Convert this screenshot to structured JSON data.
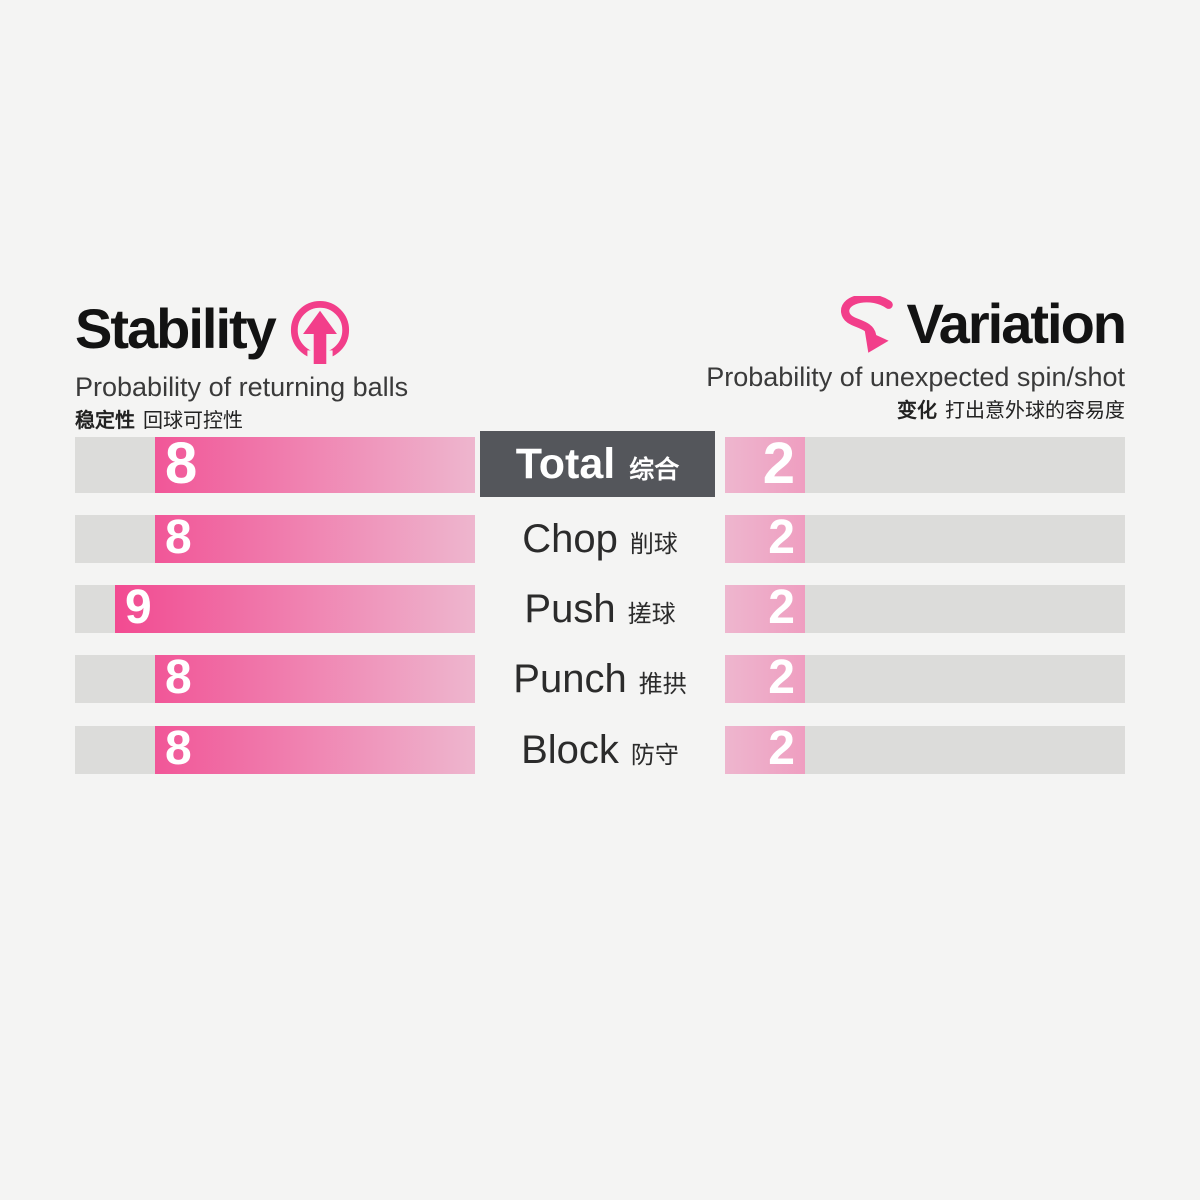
{
  "left_header": {
    "title": "Stability",
    "subtitle": "Probability of returning balls",
    "subtitle_zh_bold": "稳定性",
    "subtitle_zh": "回球可控性",
    "icon": "arrow-up-circle-icon"
  },
  "right_header": {
    "title": "Variation",
    "subtitle": "Probability of unexpected spin/shot",
    "subtitle_zh_bold": "变化",
    "subtitle_zh": "打出意外球的容易度",
    "icon": "spin-swoosh-icon"
  },
  "colors": {
    "background": "#f4f4f3",
    "track_gray": "#dcdcda",
    "pink_strong": "#f23e8a",
    "pink_pale": "#eeb6ce",
    "badge_dark": "#54565b",
    "bar_value_text": "#ffffff",
    "title_text": "#131313"
  },
  "chart_data": {
    "type": "bar",
    "orientation": "horizontal-mirrored",
    "categories": [
      "Total",
      "Chop",
      "Push",
      "Punch",
      "Block"
    ],
    "categories_zh": [
      "综合",
      "削球",
      "搓球",
      "推拱",
      "防守"
    ],
    "series": [
      {
        "name": "Stability",
        "side": "left",
        "values": [
          8,
          8,
          9,
          8,
          8
        ]
      },
      {
        "name": "Variation",
        "side": "right",
        "values": [
          2,
          2,
          2,
          2,
          2
        ]
      }
    ],
    "value_range": [
      0,
      10
    ],
    "notes": "Left bars grow from center toward left; right bars grow from center toward right; gradient bright at outer edge, pale toward center; first row highlighted with dark Total badge."
  }
}
